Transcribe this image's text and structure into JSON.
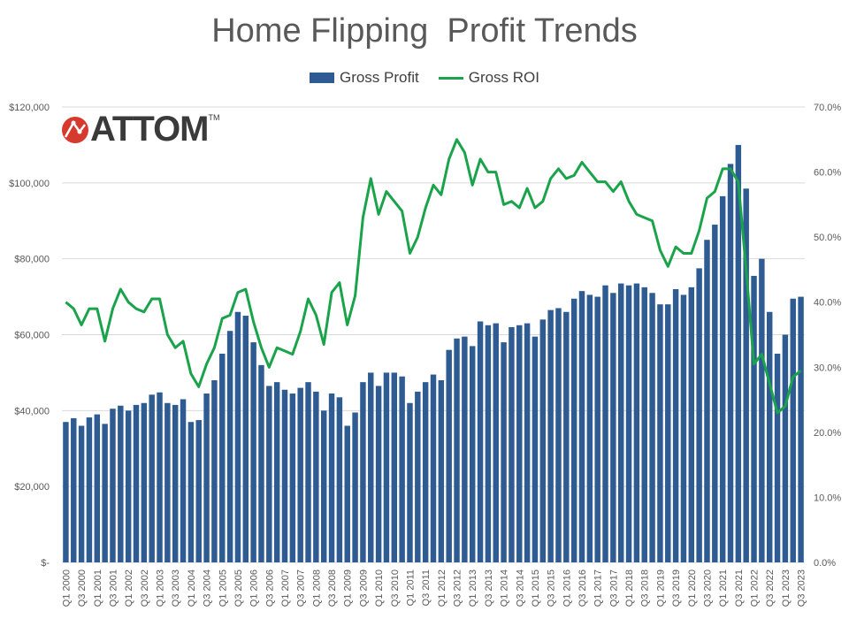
{
  "chart_data": {
    "type": "bar+line",
    "title": "Home Flipping  Profit Trends",
    "logo_text": "ATTOM",
    "legend_placement": "top",
    "grid": true,
    "y_left": {
      "ylim": [
        0,
        120000
      ],
      "ticks": [
        "$-",
        "$20,000",
        "$40,000",
        "$60,000",
        "$80,000",
        "$100,000",
        "$120,000"
      ],
      "tick_values": [
        0,
        20000,
        40000,
        60000,
        80000,
        100000,
        120000
      ]
    },
    "y_right": {
      "ylim": [
        0,
        70
      ],
      "ticks": [
        "0.0%",
        "10.0%",
        "20.0%",
        "30.0%",
        "40.0%",
        "50.0%",
        "60.0%",
        "70.0%"
      ],
      "tick_values": [
        0,
        10,
        20,
        30,
        40,
        50,
        60,
        70
      ]
    },
    "x_tick_labels": [
      "Q1 2000",
      "Q3 2000",
      "Q1 2001",
      "Q3 2001",
      "Q1 2002",
      "Q3 2002",
      "Q1 2003",
      "Q3 2003",
      "Q1 2004",
      "Q3 2004",
      "Q1 2005",
      "Q3 2005",
      "Q1 2006",
      "Q3 2006",
      "Q1 2007",
      "Q3 2007",
      "Q1 2008",
      "Q3 2008",
      "Q1 2009",
      "Q3 2009",
      "Q1 2010",
      "Q3 2010",
      "Q1 2011",
      "Q3 2011",
      "Q1 2012",
      "Q3 2012",
      "Q1 2013",
      "Q3 2013",
      "Q1 2014",
      "Q3 2014",
      "Q1 2015",
      "Q3 2015",
      "Q1 2016",
      "Q3 2016",
      "Q1 2017",
      "Q3 2017",
      "Q1 2018",
      "Q3 2018",
      "Q1 2019",
      "Q3 2019",
      "Q1 2020",
      "Q3 2020",
      "Q1 2021",
      "Q3 2021",
      "Q1 2022",
      "Q3 2022",
      "Q1 2023",
      "Q3 2023"
    ],
    "series": [
      {
        "name": "Gross Profit",
        "type": "bar",
        "axis": "left",
        "color": "#2f5b93",
        "values": [
          37000,
          38000,
          36000,
          38200,
          39000,
          36500,
          40500,
          41300,
          40000,
          41500,
          42000,
          44200,
          44800,
          42000,
          41500,
          43000,
          37000,
          37500,
          44500,
          48000,
          55000,
          61000,
          66000,
          65000,
          58000,
          52000,
          46500,
          47500,
          45500,
          44500,
          46000,
          47500,
          45000,
          40000,
          44500,
          43500,
          36000,
          39500,
          47500,
          50000,
          46500,
          50000,
          50000,
          49000,
          42000,
          45000,
          47500,
          49500,
          48000,
          56000,
          59000,
          59500,
          57000,
          63500,
          62500,
          63000,
          58000,
          62000,
          62500,
          63000,
          59500,
          64000,
          66500,
          67000,
          66000,
          69500,
          71500,
          70500,
          70000,
          73000,
          71000,
          73500,
          73000,
          73500,
          72500,
          71000,
          68000,
          68000,
          72000,
          70500,
          72500,
          77500,
          85000,
          89000,
          96500,
          105000,
          110000,
          98500,
          75500,
          80000,
          66000,
          55000,
          60000,
          69500,
          70000
        ]
      },
      {
        "name": "Gross ROI",
        "type": "line",
        "axis": "right",
        "color": "#1aa34a",
        "values": [
          40,
          39,
          36.5,
          39,
          39,
          34,
          39,
          42,
          40,
          39,
          38.5,
          40.5,
          40.5,
          35,
          33,
          34,
          29,
          27,
          30.5,
          33,
          37.5,
          38,
          41.5,
          42,
          37,
          33,
          30,
          33,
          32.5,
          32,
          35.5,
          40.5,
          38,
          33.5,
          41.5,
          43,
          36.5,
          41,
          53,
          59,
          53.5,
          57,
          55.5,
          54,
          47.5,
          50,
          54.5,
          58,
          56.5,
          62,
          65,
          63,
          58,
          62,
          60,
          60,
          55,
          55.5,
          54.5,
          57.5,
          54.5,
          55.5,
          59,
          60.5,
          59,
          59.5,
          61.5,
          60,
          58.5,
          58.5,
          57,
          58.5,
          55.5,
          53.5,
          53,
          52.5,
          48,
          45.5,
          48.5,
          47.5,
          47.5,
          51,
          56,
          57,
          60.5,
          60.5,
          58.5,
          45,
          30.5,
          32,
          27.5,
          23,
          24,
          28.5,
          29.5
        ]
      }
    ]
  }
}
